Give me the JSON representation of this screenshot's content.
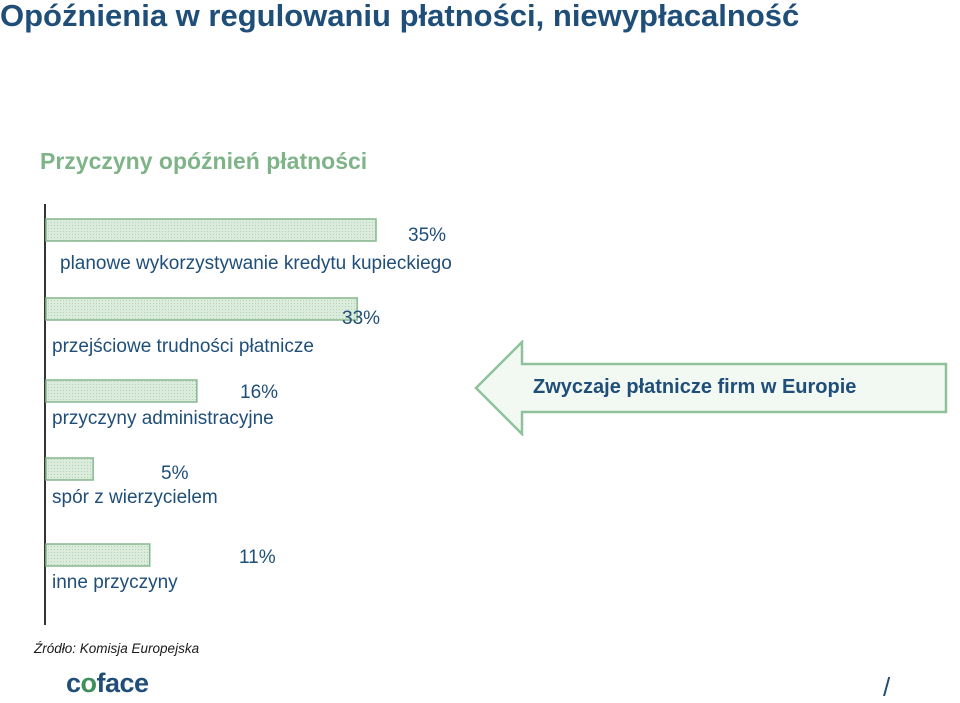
{
  "title": "Opóźnienia w regulowaniu płatności, niewypłacalność",
  "callout": {
    "text": "Zwyczaje płatnicze firm w Europie"
  },
  "source": "Źródło: Komisja Europejska",
  "logo": "coface",
  "footer_mark": "/",
  "colors": {
    "title": "#1f4e79",
    "subtitle": "#7fb489",
    "bar_fill": "#d9ead9",
    "bar_stroke": "#86b78f",
    "axis": "#333333"
  },
  "chart_data": {
    "type": "bar",
    "orientation": "horizontal",
    "title": "Przyczyny opóźnień płatności",
    "categories": [
      "planowe wykorzystywanie kredytu kupieckiego",
      "przejściowe trudności płatnicze",
      "przyczyny administracyjne",
      "spór z wierzycielem",
      "inne przyczyny"
    ],
    "values": [
      35,
      33,
      16,
      5,
      11
    ],
    "value_labels": [
      "35%",
      "33%",
      "16%",
      "5%",
      "11%"
    ],
    "grid": false,
    "legend": "none"
  }
}
